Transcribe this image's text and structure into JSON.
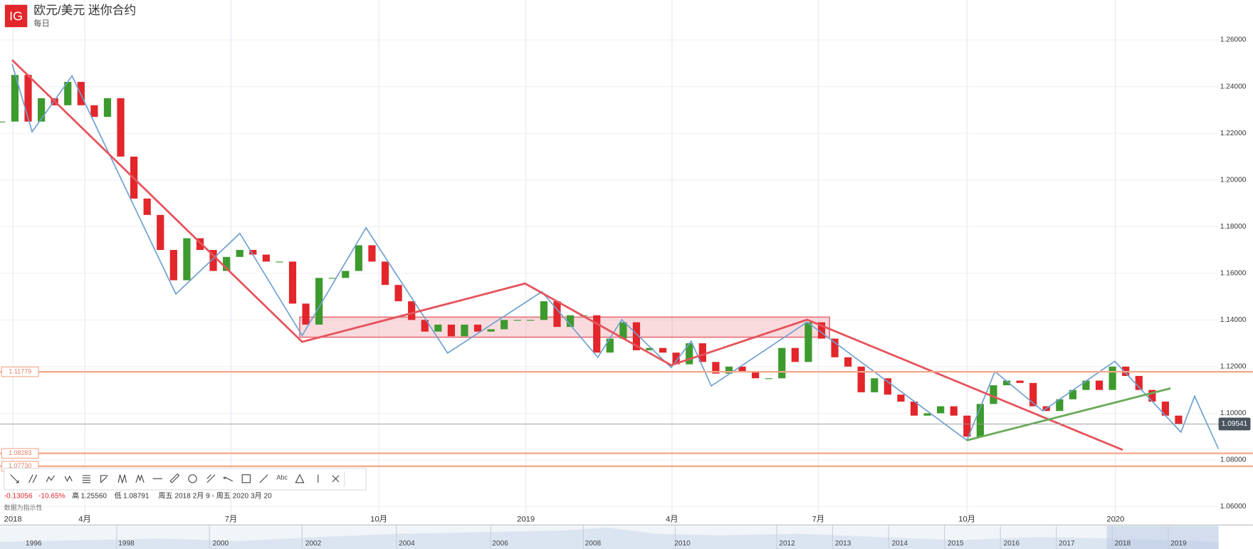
{
  "header": {
    "logo": "IG",
    "title": "欧元/美元 迷你合约",
    "interval": "每日"
  },
  "chart_data": {
    "type": "candlestick",
    "up_color": "#3d9a2e",
    "down_color": "#e2262b",
    "grid": true,
    "values": [
      1.225,
      1.245,
      1.225,
      1.235,
      1.232,
      1.242,
      1.232,
      1.227,
      1.235,
      1.21,
      1.192,
      1.185,
      1.17,
      1.157,
      1.175,
      1.17,
      1.161,
      1.167,
      1.17,
      1.168,
      1.165,
      1.165,
      1.147,
      1.138,
      1.158,
      1.158,
      1.161,
      1.172,
      1.165,
      1.155,
      1.148,
      1.14,
      1.135,
      1.138,
      1.133,
      1.138,
      1.135,
      1.136,
      1.14,
      1.14,
      1.14,
      1.148,
      1.137,
      1.142,
      1.142,
      1.126,
      1.132,
      1.139,
      1.127,
      1.128,
      1.126,
      1.121,
      1.13,
      1.122,
      1.117,
      1.12,
      1.118,
      1.115,
      1.115,
      1.128,
      1.122,
      1.139,
      1.132,
      1.124,
      1.12,
      1.109,
      1.115,
      1.108,
      1.105,
      1.099,
      1.1,
      1.103,
      1.099,
      1.09,
      1.104,
      1.112,
      1.114,
      1.113,
      1.103,
      1.101,
      1.106,
      1.11,
      1.114,
      1.11,
      1.12,
      1.116,
      1.11,
      1.105,
      1.099,
      1.09541
    ],
    "xlim": [
      -0.12,
      92.02
    ],
    "xticks": [
      {
        "value": 0.85,
        "label": "2018"
      },
      {
        "value": 6.28,
        "label": "4月"
      },
      {
        "value": 17.34,
        "label": "7月"
      },
      {
        "value": 28.52,
        "label": "10月"
      },
      {
        "value": 39.64,
        "label": "2019"
      },
      {
        "value": 50.69,
        "label": "4月"
      },
      {
        "value": 61.75,
        "label": "7月"
      },
      {
        "value": 72.99,
        "label": "10月"
      },
      {
        "value": 84.23,
        "label": "2020"
      }
    ],
    "ylim": [
      1.0528,
      1.2771
    ],
    "yticks": [
      {
        "value": 1.06,
        "label": "1.06000"
      },
      {
        "value": 1.08,
        "label": "1.08000"
      },
      {
        "value": 1.1,
        "label": "1.10000"
      },
      {
        "value": 1.12,
        "label": "1.12000"
      },
      {
        "value": 1.14,
        "label": "1.14000"
      },
      {
        "value": 1.16,
        "label": "1.16000"
      },
      {
        "value": 1.18,
        "label": "1.18000"
      },
      {
        "value": 1.2,
        "label": "1.20000"
      },
      {
        "value": 1.22,
        "label": "1.22000"
      },
      {
        "value": 1.24,
        "label": "1.24000"
      },
      {
        "value": 1.26,
        "label": "1.26000"
      }
    ],
    "levels": [
      1.11779,
      1.08283,
      {
        "value": 1.0773,
        "label": "1.07730"
      }
    ],
    "level_color": "#f5a78a",
    "zone": {
      "color": "#e8707a",
      "x": [
        22.54,
        62.6
      ],
      "y": [
        1.1326,
        1.1412
      ]
    },
    "trend": {
      "color": "#e5545c",
      "x": [
        0.79,
        22.72,
        39.58,
        50.63,
        60.91,
        84.77
      ],
      "y": [
        1.2514,
        1.1306,
        1.1556,
        1.1206,
        1.1401,
        1.0843
      ]
    },
    "zigzag": {
      "color": "#6fa0d0",
      "x": [
        0.79,
        2.3,
        5.32,
        13.17,
        18.01,
        22.72,
        27.55,
        33.72,
        40.85,
        45.08,
        46.89,
        50.63,
        52.14,
        53.66,
        60.91,
        72.99,
        75.11,
        78.73,
        84.17,
        89.18,
        90.21,
        92.02
      ],
      "y": [
        1.2497,
        1.2206,
        1.2446,
        1.1511,
        1.1771,
        1.1333,
        1.1795,
        1.1258,
        1.1521,
        1.124,
        1.1401,
        1.1196,
        1.1309,
        1.1117,
        1.1391,
        1.0884,
        1.1179,
        1.101,
        1.1223,
        1.0919,
        1.1073,
        1.0847
      ]
    },
    "support": {
      "color": "#6aaa5a",
      "x": [
        72.99,
        88.39
      ],
      "y": [
        1.0884,
        1.1107
      ]
    }
  },
  "toolbar": {
    "text_tool": "Abc"
  },
  "stats": {
    "change": "-0.13056",
    "change_pct": "-10.65%",
    "high_label": "高",
    "high": "1.25560",
    "low_label": "低",
    "low": "1.08791",
    "range": "周五 2018 2月 9 - 周五 2020 3月 20",
    "note": "数据为指示性"
  },
  "navigator": {
    "years": [
      "1996",
      "1998",
      "2000",
      "2002",
      "2004",
      "2006",
      "2008",
      "2010",
      "2012",
      "2013",
      "2014",
      "2015",
      "2016",
      "2017",
      "2018",
      "2019"
    ]
  }
}
